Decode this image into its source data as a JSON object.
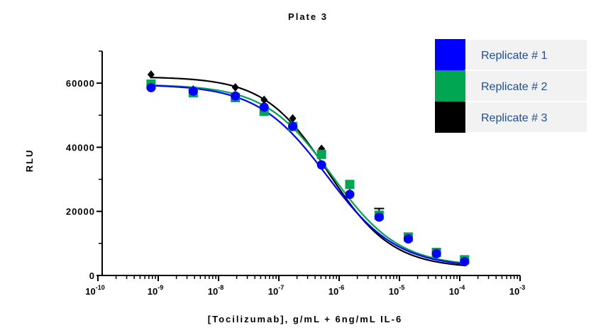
{
  "chart_data": {
    "type": "scatter",
    "title": "Plate 3",
    "xlabel": "[Tocilizumab], g/mL + 6ng/mL IL-6",
    "ylabel": "RLU",
    "x_scale": "log",
    "xlim": [
      1e-10,
      0.001
    ],
    "ylim": [
      0,
      70000
    ],
    "x_ticks": [
      {
        "base": "10",
        "exp": "-10"
      },
      {
        "base": "10",
        "exp": "-9"
      },
      {
        "base": "10",
        "exp": "-8"
      },
      {
        "base": "10",
        "exp": "-7"
      },
      {
        "base": "10",
        "exp": "-6"
      },
      {
        "base": "10",
        "exp": "-5"
      },
      {
        "base": "10",
        "exp": "-4"
      },
      {
        "base": "10",
        "exp": "-3"
      }
    ],
    "y_ticks": [
      "0",
      "20000",
      "40000",
      "60000"
    ],
    "grid": false,
    "legend_position": "top-right",
    "x": [
      7.6e-10,
      3.8e-09,
      1.9e-08,
      5.7e-08,
      1.7e-07,
      5.1e-07,
      1.5e-06,
      4.6e-06,
      1.4e-05,
      4.1e-05,
      0.00012
    ],
    "series": [
      {
        "name": "Replicate # 1",
        "color": "#0000ff",
        "marker": "circle",
        "values": [
          58600,
          57500,
          56000,
          52500,
          46500,
          34500,
          25300,
          18200,
          11400,
          6800,
          4300
        ],
        "error": [
          0,
          0,
          0,
          0,
          0,
          0,
          0,
          0,
          0,
          0,
          0
        ]
      },
      {
        "name": "Replicate # 2",
        "color": "#00a651",
        "marker": "square",
        "values": [
          59700,
          57000,
          55500,
          51200,
          46500,
          37800,
          28400,
          18800,
          12000,
          7200,
          4900
        ],
        "error": [
          0,
          0,
          0,
          0,
          0,
          0,
          0,
          0,
          0,
          0,
          0
        ]
      },
      {
        "name": "Replicate # 3",
        "color": "#000000",
        "marker": "diamond",
        "values": [
          62700,
          58000,
          58700,
          54800,
          49000,
          39500,
          28000,
          18300,
          11500,
          7000,
          4500
        ],
        "error": [
          0,
          0,
          0,
          0,
          0,
          0,
          0,
          2600,
          0,
          0,
          0
        ]
      }
    ],
    "fits": [
      {
        "series": "Replicate # 1",
        "top": 59600,
        "bottom": 2500,
        "log_ec50": -6.2,
        "hill": 0.75
      },
      {
        "series": "Replicate # 2",
        "top": 59600,
        "bottom": 2800,
        "log_ec50": -6.12,
        "hill": 0.78
      },
      {
        "series": "Replicate # 3",
        "top": 62000,
        "bottom": 2300,
        "log_ec50": -6.18,
        "hill": 0.82
      }
    ]
  }
}
